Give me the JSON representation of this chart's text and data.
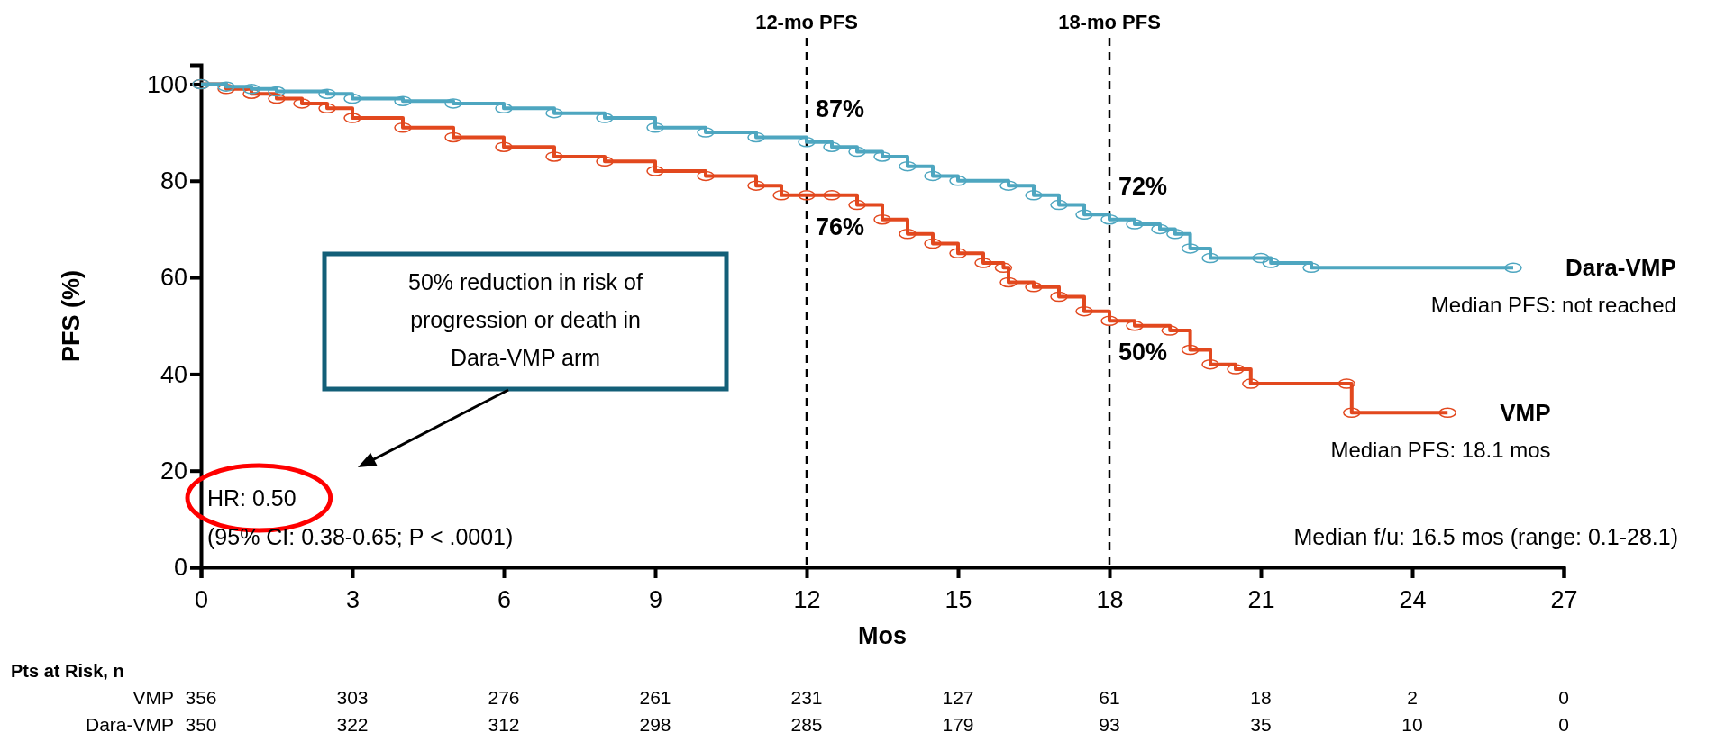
{
  "chart_data": {
    "type": "step",
    "xlabel": "Mos",
    "ylabel": "PFS (%)",
    "xlim": [
      0,
      27
    ],
    "xticks": [
      0,
      3,
      6,
      9,
      12,
      15,
      18,
      21,
      24,
      27
    ],
    "ylim": [
      0,
      104
    ],
    "yticks": [
      0,
      20,
      40,
      60,
      80,
      100
    ],
    "grid": false,
    "legend": false,
    "marker": "circle",
    "line_style": "solid",
    "series": [
      {
        "name": "VMP",
        "color": "#e2481e",
        "x": [
          0,
          0.5,
          1,
          1.5,
          2,
          2.5,
          3,
          4,
          5,
          6,
          7,
          8,
          9,
          10,
          11,
          11.5,
          12,
          12.5,
          13,
          13.5,
          14,
          14.5,
          15,
          15.5,
          15.9,
          16,
          16.5,
          17,
          17.5,
          18,
          18.5,
          19.2,
          19.6,
          20,
          20.5,
          20.8,
          22.7,
          22.8,
          24.7
        ],
        "values": [
          100,
          99,
          98,
          97,
          96,
          95,
          93,
          91,
          89,
          87,
          85,
          84,
          82,
          81,
          79,
          77,
          77,
          77,
          75,
          72,
          69,
          67,
          65,
          63,
          62,
          59,
          58,
          56,
          53,
          51,
          50,
          49,
          45,
          42,
          41,
          38,
          38,
          32,
          32
        ]
      },
      {
        "name": "Dara-VMP",
        "color": "#4ea6c0",
        "x": [
          0,
          0.5,
          1,
          1.5,
          2.5,
          3,
          4,
          5,
          6,
          7,
          8,
          9,
          10,
          11,
          12,
          12.5,
          13,
          13.5,
          14,
          14.5,
          15,
          16,
          16.5,
          17,
          17.5,
          18,
          18.5,
          19,
          19.3,
          19.6,
          20,
          21,
          21.2,
          22,
          26
        ],
        "values": [
          100,
          99.5,
          99,
          98.5,
          98,
          97,
          96.5,
          96,
          95,
          94,
          93,
          91,
          90,
          89,
          88,
          87,
          86,
          85,
          83,
          81,
          80,
          79,
          77,
          75,
          73,
          72,
          71,
          70,
          69,
          66,
          64,
          64,
          63,
          62,
          62
        ]
      }
    ],
    "ref_lines": [
      {
        "axis": "x",
        "value": 12,
        "label": "12-mo PFS",
        "color": "#000000",
        "line_style": "dashed"
      },
      {
        "axis": "x",
        "value": 18,
        "label": "18-mo PFS",
        "color": "#000000",
        "line_style": "dashed"
      }
    ],
    "annotations": [
      "87%",
      "76%",
      "72%",
      "50%",
      "50% reduction in risk of progression or death in Dara-VMP arm",
      "HR: 0.50",
      "(95% CI: 0.38-0.65; P < .0001)",
      "Median f/u: 16.5 mos (range: 0.1-28.1)",
      "Median PFS: 18.1 mos",
      "Median PFS: not reached",
      "Pts at Risk, n",
      "VMP",
      "356",
      "303",
      "276",
      "261",
      "231",
      "127",
      "61",
      "18",
      "2",
      "0",
      "Dara-VMP",
      "350",
      "322",
      "312",
      "298",
      "285",
      "179",
      "93",
      "35",
      "10",
      "0"
    ]
  }
}
